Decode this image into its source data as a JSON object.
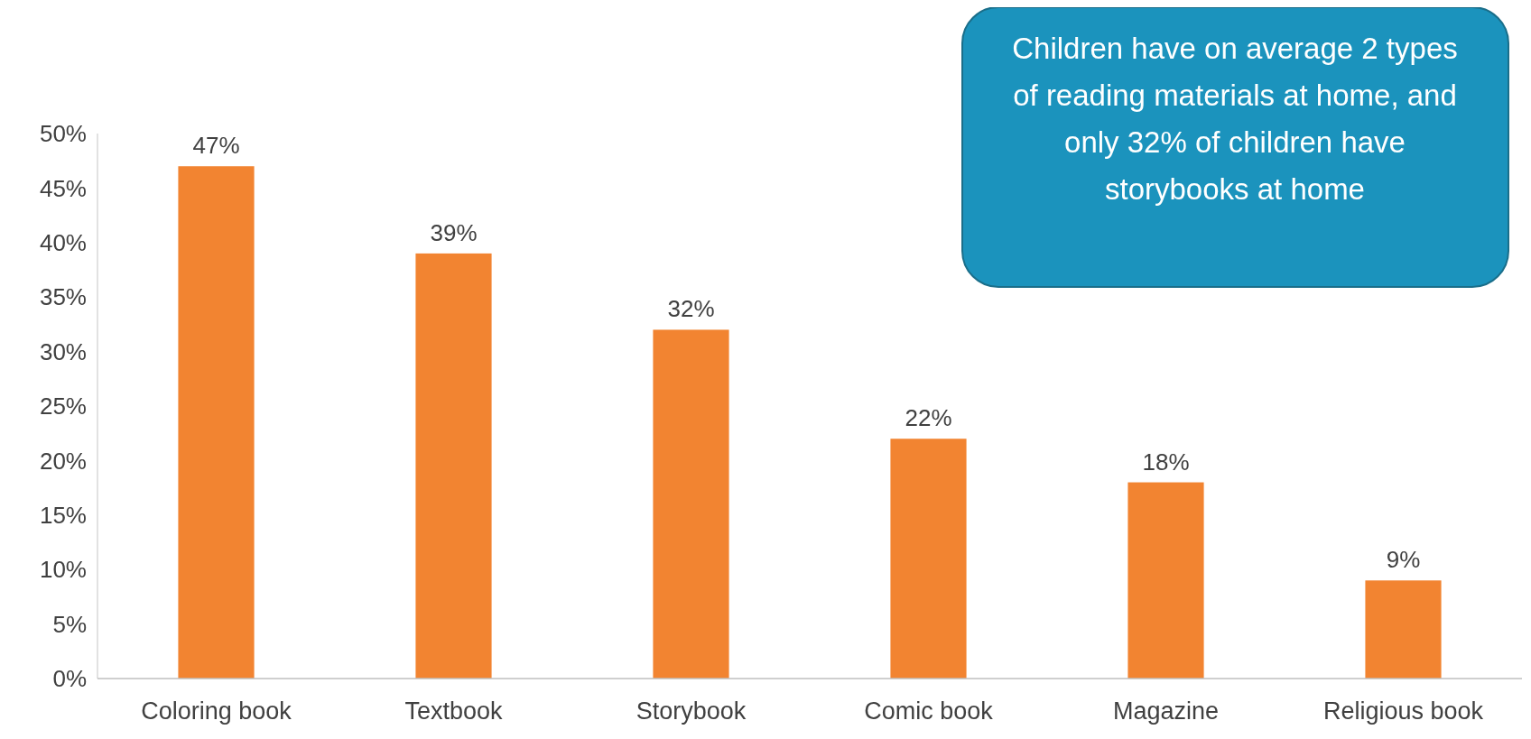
{
  "chart_data": {
    "type": "bar",
    "categories": [
      "Coloring book",
      "Textbook",
      "Storybook",
      "Comic book",
      "Magazine",
      "Religious book"
    ],
    "values": [
      47,
      39,
      32,
      22,
      18,
      9
    ],
    "color": "#f28431",
    "ylim": [
      0,
      50
    ],
    "yticks": [
      {
        "value": 0,
        "label": "0%"
      },
      {
        "value": 5,
        "label": "5%"
      },
      {
        "value": 10,
        "label": "10%"
      },
      {
        "value": 15,
        "label": "15%"
      },
      {
        "value": 20,
        "label": "20%"
      },
      {
        "value": 25,
        "label": "25%"
      },
      {
        "value": 30,
        "label": "30%"
      },
      {
        "value": 35,
        "label": "35%"
      },
      {
        "value": 40,
        "label": "40%"
      },
      {
        "value": 45,
        "label": "45%"
      },
      {
        "value": 50,
        "label": "50%"
      }
    ],
    "data_labels": true,
    "value_labels": [
      "47%",
      "39%",
      "32%",
      "22%",
      "18%",
      "9%"
    ],
    "annotations": [
      "Children have on average 2 types of reading materials at home, and only 32% of children have storybooks at home"
    ]
  }
}
